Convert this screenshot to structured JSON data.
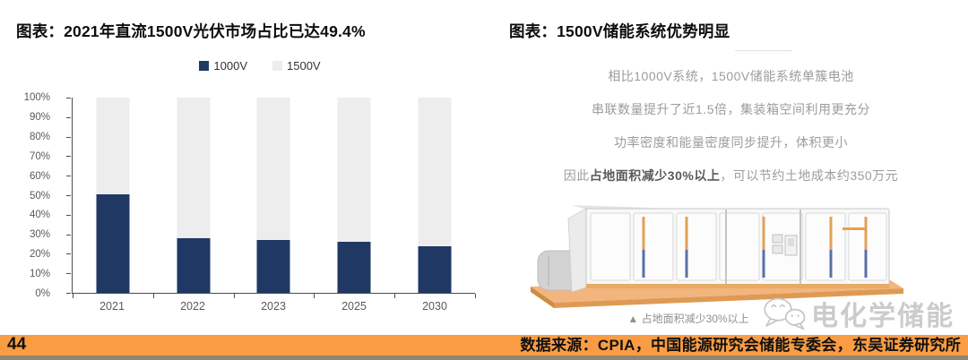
{
  "page": {
    "number": "44",
    "source_text": "数据来源：CPIA，中国能源研究会储能专委会，东吴证券研究所",
    "footer_bar_color": "#F99C44",
    "footer_edge_color": "#8C8674",
    "background_color": "#FFFFFF"
  },
  "left_panel": {
    "title": "图表：2021年直流1500V光伏市场占比已达49.4%"
  },
  "chart_data": {
    "type": "bar",
    "variant": "stacked-100-percent",
    "title": "2021年直流1500V光伏市场占比已达49.4%",
    "categories": [
      "2021",
      "2022",
      "2023",
      "2025",
      "2030"
    ],
    "series": [
      {
        "name": "1000V",
        "color": "#203864",
        "values": [
          50.6,
          28,
          27,
          26,
          24
        ]
      },
      {
        "name": "1500V",
        "color": "#EDEDED",
        "values": [
          49.4,
          72,
          73,
          74,
          76
        ]
      }
    ],
    "unit": "%",
    "ylim": [
      0,
      100
    ],
    "ytick_step": 10,
    "legend_position": "top",
    "grid": false,
    "axis_color": "#4D4D4D",
    "tick_label_color": "#595959"
  },
  "right_panel": {
    "title": "图表：1500V储能系统优势明显",
    "lines": [
      "相比1000V系统，1500V储能系统单簇电池",
      "串联数量提升了近1.5倍，集装箱空间利用更充分",
      "功率密度和能量密度同步提升，体积更小"
    ],
    "line4": {
      "pre": "因此",
      "bold": "占地面积减少30%以上",
      "post": "，可以节约土地成本约350万元"
    },
    "caption": "▲ 占地面积减少30%以上",
    "illustration": "1500v-energy-storage-container"
  },
  "watermark": {
    "text": "电化学储能",
    "icon": "chat-bubble-faces-icon"
  }
}
